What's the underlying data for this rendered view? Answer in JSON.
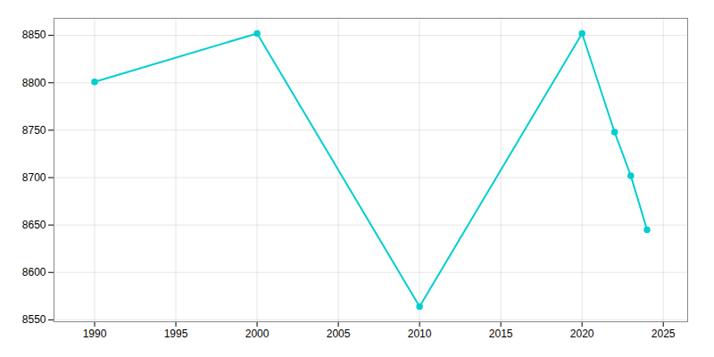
{
  "chart_data": {
    "type": "line",
    "x": [
      1990,
      2000,
      2010,
      2020,
      2022,
      2023,
      2024
    ],
    "values": [
      8801,
      8852,
      8564,
      8852,
      8748,
      8702,
      8645
    ],
    "color": "#00CED1",
    "marker": "circle",
    "xlim": [
      1987.5,
      2026.5
    ],
    "ylim": [
      8548,
      8868
    ],
    "xticks": [
      1990,
      1995,
      2000,
      2005,
      2010,
      2015,
      2020,
      2025
    ],
    "yticks": [
      8550,
      8600,
      8650,
      8700,
      8750,
      8800,
      8850
    ],
    "grid": true
  }
}
